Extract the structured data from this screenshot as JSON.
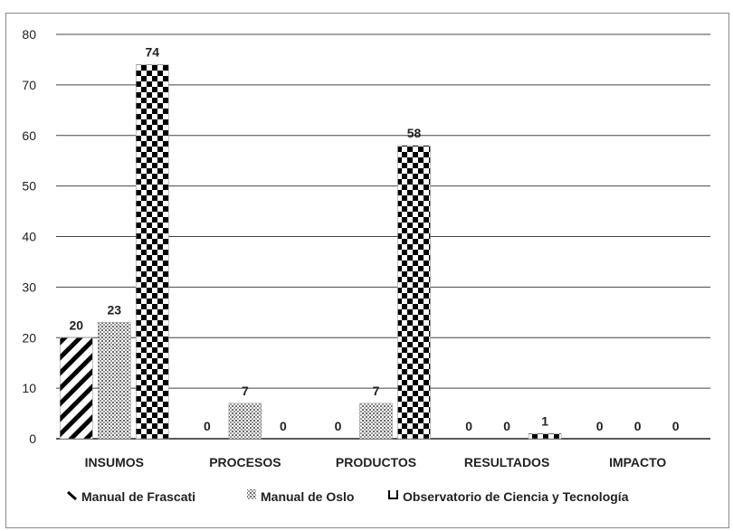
{
  "chart_data": {
    "type": "bar",
    "categories": [
      "INSUMOS",
      "PROCESOS",
      "PRODUCTOS",
      "RESULTADOS",
      "IMPACTO"
    ],
    "series": [
      {
        "name": "Manual de Frascati",
        "values": [
          20,
          0,
          0,
          0,
          0
        ],
        "pattern": "diagonal-hatch"
      },
      {
        "name": "Manual de Oslo",
        "values": [
          23,
          7,
          7,
          0,
          0
        ],
        "pattern": "dotted"
      },
      {
        "name": "Observatorio de Ciencia y Tecnología",
        "values": [
          74,
          0,
          58,
          1,
          0
        ],
        "pattern": "checkerboard"
      }
    ],
    "y_ticks": [
      "0",
      "10",
      "20",
      "30",
      "40",
      "50",
      "60",
      "70",
      "80"
    ],
    "ylim": [
      0,
      80
    ],
    "grid": true,
    "legend_position": "bottom",
    "colors": {
      "ink": "#000000",
      "grid": "#444444",
      "text": "#222222"
    }
  }
}
